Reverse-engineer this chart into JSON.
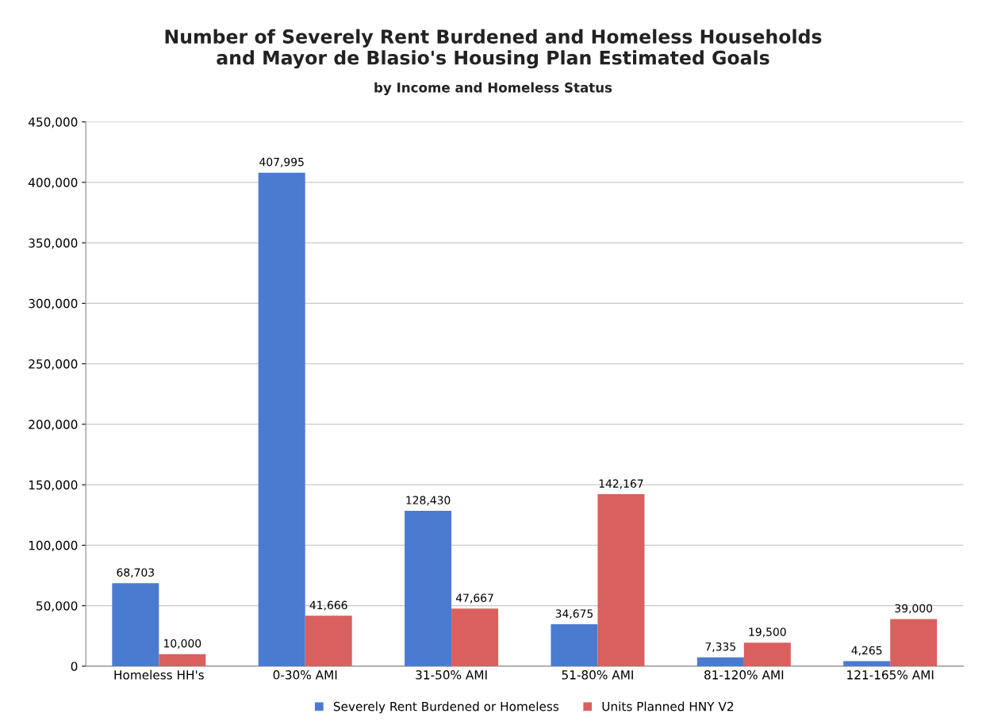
{
  "chart_data": {
    "type": "bar",
    "title": "Number of Severely Rent Burdened and Homeless Households\nand Mayor de Blasio's Housing Plan Estimated Goals",
    "subtitle": "by Income and Homeless Status",
    "categories": [
      "Homeless HH's",
      "0-30% AMI",
      "31-50% AMI",
      "51-80% AMI",
      "81-120% AMI",
      "121-165% AMI"
    ],
    "series": [
      {
        "name": "Severely Rent Burdened or Homeless",
        "color": "#4a7bd0",
        "values": [
          68703,
          407995,
          128430,
          34675,
          7335,
          4265
        ]
      },
      {
        "name": "Units Planned HNY V2",
        "color": "#d9605e",
        "values": [
          10000,
          41666,
          47667,
          142167,
          19500,
          39000
        ]
      }
    ],
    "ylim": [
      0,
      450000
    ],
    "yticks": [
      {
        "value": 0,
        "label": "0"
      },
      {
        "value": 50000,
        "label": "50,000"
      },
      {
        "value": 100000,
        "label": "100,000"
      },
      {
        "value": 150000,
        "label": "150,000"
      },
      {
        "value": 200000,
        "label": "200,000"
      },
      {
        "value": 250000,
        "label": "250,000"
      },
      {
        "value": 300000,
        "label": "300,000"
      },
      {
        "value": 350000,
        "label": "350,000"
      },
      {
        "value": 400000,
        "label": "400,000"
      },
      {
        "value": 450000,
        "label": "450,000"
      }
    ],
    "grid": "y",
    "legend": "bottom",
    "value_labels": [
      [
        "68,703",
        "407,995",
        "128,430",
        "34,675",
        "7,335",
        "4,265"
      ],
      [
        "10,000",
        "41,666",
        "47,667",
        "142,167",
        "19,500",
        "39,000"
      ]
    ]
  }
}
